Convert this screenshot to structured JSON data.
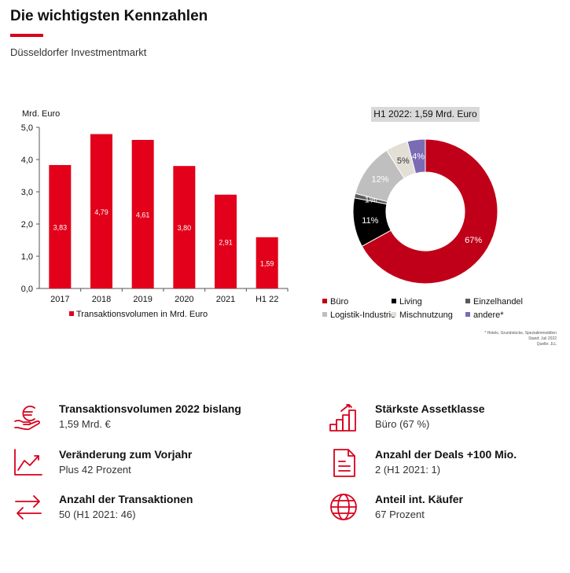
{
  "header": {
    "title": "Die wichtigsten Kennzahlen",
    "subtitle": "Düsseldorfer Investmentmarkt"
  },
  "colors": {
    "accent": "#d8001c",
    "bar": "#e2001a",
    "buero": "#c00018",
    "living": "#000000",
    "einzelhandel": "#595959",
    "logistik": "#bfbfbf",
    "misch": "#e3ded6",
    "andere": "#7b6bb5"
  },
  "chart_data": [
    {
      "type": "bar",
      "ylabel": "Mrd. Euro",
      "categories": [
        "2017",
        "2018",
        "2019",
        "2020",
        "2021",
        "H1 22"
      ],
      "values": [
        3.83,
        4.79,
        4.61,
        3.8,
        2.91,
        1.59
      ],
      "value_labels": [
        "3,83",
        "4,79",
        "4,61",
        "3,80",
        "2,91",
        "1,59"
      ],
      "yticks": [
        "0,0",
        "1,0",
        "2,0",
        "3,0",
        "4,0",
        "5,0"
      ],
      "ylim": [
        0,
        5
      ],
      "series": [
        {
          "name": "Transaktionsvolumen in Mrd. Euro"
        }
      ],
      "legend": "bottom"
    },
    {
      "type": "pie",
      "title": "H1 2022: 1,59 Mrd. Euro",
      "slices": [
        {
          "name": "Büro",
          "value": 67,
          "label": "67%"
        },
        {
          "name": "Living",
          "value": 11,
          "label": "11%"
        },
        {
          "name": "Einzelhandel",
          "value": 1,
          "label": "1%"
        },
        {
          "name": "Logistik-Industrie",
          "value": 12,
          "label": "12%"
        },
        {
          "name": "Mischnutzung",
          "value": 5,
          "label": "5%"
        },
        {
          "name": "andere*",
          "value": 4,
          "label": "4%"
        }
      ],
      "legend": "bottom"
    }
  ],
  "footnote": {
    "line1": "* Hotels, Grundstücke, Spezialimmobilien",
    "line2": "Stand: Juli 2022",
    "line3": "Quelle: JLL"
  },
  "kpis": [
    {
      "title": "Transaktionsvolumen 2022 bislang",
      "value": "1,59 Mrd. €",
      "icon": "euro-hand-icon"
    },
    {
      "title": "Stärkste Assetklasse",
      "value": "Büro (67 %)",
      "icon": "rising-bars-icon"
    },
    {
      "title": "Veränderung zum Vorjahr",
      "value": "Plus 42 Prozent",
      "icon": "trend-chart-icon"
    },
    {
      "title": "Anzahl der Deals +100 Mio.",
      "value": "2 (H1 2021: 1)",
      "icon": "document-icon"
    },
    {
      "title": "Anzahl der Transaktionen",
      "value": "50 (H1 2021: 46)",
      "icon": "exchange-arrows-icon"
    },
    {
      "title": "Anteil int. Käufer",
      "value": "67 Prozent",
      "icon": "globe-icon"
    }
  ]
}
